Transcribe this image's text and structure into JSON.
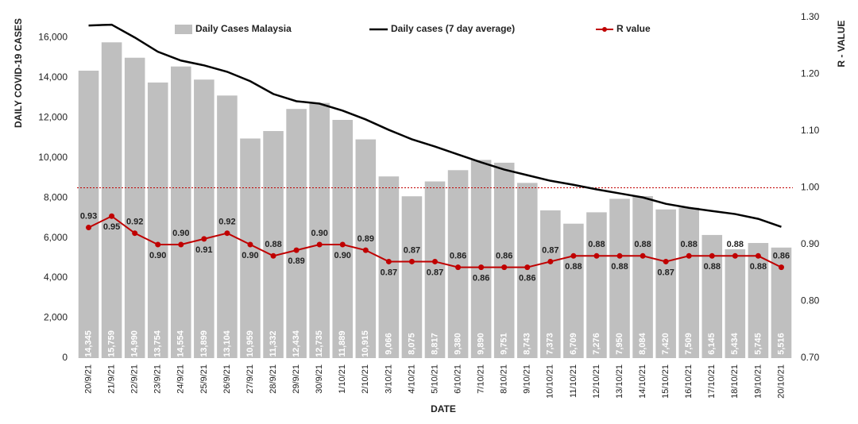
{
  "chart_data": {
    "type": "bar",
    "x_label": "DATE",
    "y_label": "DAILY COVID-19 CASES",
    "y2_label": "R - VALUE",
    "legend": "top",
    "categories": [
      "20/9/21",
      "21/9/21",
      "22/9/21",
      "23/9/21",
      "24/9/21",
      "25/9/21",
      "26/9/21",
      "27/9/21",
      "28/9/21",
      "29/9/21",
      "30/9/21",
      "1/10/21",
      "2/10/21",
      "3/10/21",
      "4/10/21",
      "5/10/21",
      "6/10/21",
      "7/10/21",
      "8/10/21",
      "9/10/21",
      "10/10/21",
      "11/10/21",
      "12/10/21",
      "13/10/21",
      "14/10/21",
      "15/10/21",
      "16/10/21",
      "17/10/21",
      "18/10/21",
      "19/10/21",
      "20/10/21"
    ],
    "series": [
      {
        "name": "Daily Cases Malaysia",
        "type": "bar",
        "color": "#bfbfbf",
        "values": [
          14345,
          15759,
          14990,
          13754,
          14554,
          13899,
          13104,
          10959,
          11332,
          12434,
          12735,
          11889,
          10915,
          9066,
          8075,
          8817,
          9380,
          9890,
          9751,
          8743,
          7373,
          6709,
          7276,
          7950,
          8084,
          7420,
          7509,
          6145,
          5434,
          5745,
          5516
        ],
        "value_labels": [
          "14,345",
          "15,759",
          "14,990",
          "13,754",
          "14,554",
          "13,899",
          "13,104",
          "10,959",
          "11,332",
          "12,434",
          "12,735",
          "11,889",
          "10,915",
          "9,066",
          "8,075",
          "8,817",
          "9,380",
          "9,890",
          "9,751",
          "8,743",
          "7,373",
          "6,709",
          "7,276",
          "7,950",
          "8,084",
          "7,420",
          "7,509",
          "6,145",
          "5,434",
          "5,745",
          "5,516"
        ]
      },
      {
        "name": "Daily cases (7 day average)",
        "type": "line",
        "color": "#000000",
        "values": [
          16600,
          16640,
          16000,
          15290,
          14850,
          14610,
          14290,
          13820,
          13180,
          12820,
          12700,
          12350,
          11910,
          11390,
          10920,
          10560,
          10160,
          9770,
          9410,
          9130,
          8850,
          8650,
          8420,
          8220,
          8020,
          7700,
          7500,
          7340,
          7190,
          6950,
          6550
        ]
      },
      {
        "name": "R value",
        "type": "line",
        "axis": "y2",
        "color": "#c00000",
        "marker": true,
        "values": [
          0.93,
          0.95,
          0.92,
          0.9,
          0.9,
          0.91,
          0.92,
          0.9,
          0.88,
          0.89,
          0.9,
          0.9,
          0.89,
          0.87,
          0.87,
          0.87,
          0.86,
          0.86,
          0.86,
          0.86,
          0.87,
          0.88,
          0.88,
          0.88,
          0.88,
          0.87,
          0.88,
          0.88,
          0.88,
          0.88,
          0.86
        ],
        "value_labels": [
          "0.93",
          "0.95",
          "0.92",
          "0.90",
          "0.90",
          "0.91",
          "0.92",
          "0.90",
          "0.88",
          "0.89",
          "0.90",
          "0.90",
          "0.89",
          "0.87",
          "0.87",
          "0.87",
          "0.86",
          "0.86",
          "0.86",
          "0.86",
          "0.87",
          "0.88",
          "0.88",
          "0.88",
          "0.88",
          "0.87",
          "0.88",
          "0.88",
          "0.88",
          "0.88",
          "0.86"
        ]
      }
    ],
    "ylim": [
      0,
      17000
    ],
    "yticks": [
      0,
      {
        "value": 2000,
        "label": "2,000"
      },
      {
        "value": 4000,
        "label": "4,000"
      },
      {
        "value": 6000,
        "label": "6,000"
      },
      {
        "value": 8000,
        "label": "8,000"
      },
      {
        "value": 10000,
        "label": "10,000"
      },
      {
        "value": 12000,
        "label": "12,000"
      },
      {
        "value": 14000,
        "label": "14,000"
      },
      {
        "value": 16000,
        "label": "16,000"
      }
    ],
    "y2lim": [
      0.7,
      1.3
    ],
    "y2ticks": [
      {
        "value": 0.7,
        "label": "0.70"
      },
      {
        "value": 0.8,
        "label": "0.80"
      },
      {
        "value": 0.9,
        "label": "0.90"
      },
      {
        "value": 1.0,
        "label": "1.00"
      },
      {
        "value": 1.1,
        "label": "1.10"
      },
      {
        "value": 1.2,
        "label": "1.20"
      },
      {
        "value": 1.3,
        "label": "1.30"
      }
    ],
    "y2_reference_line": 1.0,
    "reference_color": "#c00000"
  }
}
